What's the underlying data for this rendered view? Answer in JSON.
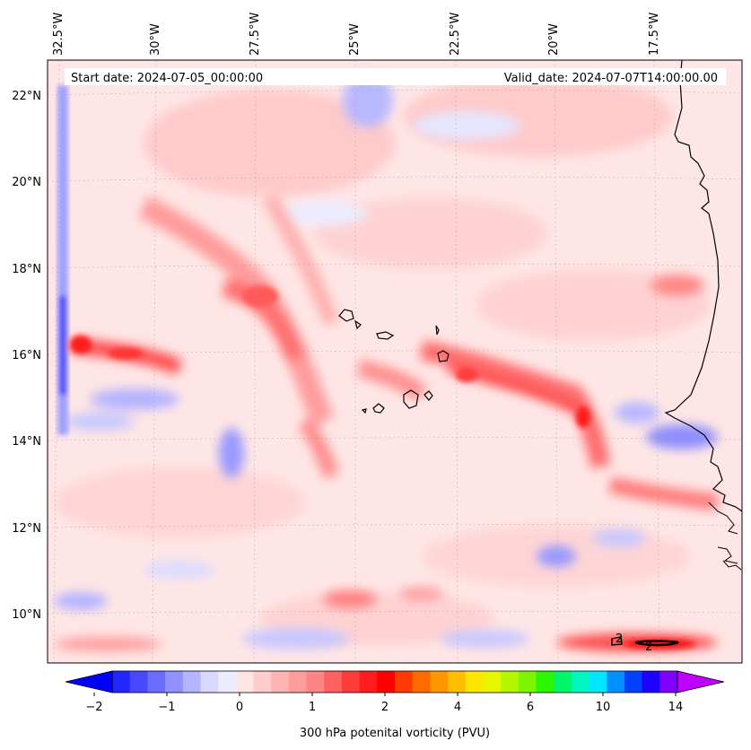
{
  "map": {
    "start_date": "Start date: 2024-07-05_00:00:00",
    "valid_date": "Valid_date: 2024-07-07T14:00:00.00",
    "lon_labels": [
      "32.5°W",
      "30°W",
      "27.5°W",
      "25°W",
      "22.5°W",
      "20°W",
      "17.5°W"
    ],
    "lat_labels": [
      "22°N",
      "20°N",
      "18°N",
      "16°N",
      "14°N",
      "12°N",
      "10°N"
    ],
    "contour_labels": [
      "2",
      "2"
    ]
  },
  "colorbar": {
    "title": "300 hPa potenital vorticity (PVU)",
    "tick_labels": [
      "−2",
      "−1",
      "0",
      "1",
      "2",
      "4",
      "6",
      "10",
      "14"
    ],
    "colors": [
      "#0000ff",
      "#2424ff",
      "#4848ff",
      "#6c6cff",
      "#9090ff",
      "#b4b4ff",
      "#d8d8ff",
      "#ececff",
      "#ffe4e4",
      "#ffcccc",
      "#ffb4b4",
      "#ff9c9c",
      "#ff8484",
      "#ff6060",
      "#ff3c3c",
      "#ff1c1c",
      "#ff0000",
      "#ff3a00",
      "#ff6a00",
      "#ff9600",
      "#ffbe00",
      "#ffe600",
      "#e8f500",
      "#b4f500",
      "#7ef500",
      "#2cf500",
      "#00f56a",
      "#00f5c0",
      "#00e6ff",
      "#0090ff",
      "#0040ff",
      "#2000ff",
      "#8000ff",
      "#c000ff"
    ]
  }
}
